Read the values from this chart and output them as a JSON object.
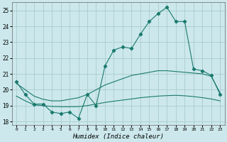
{
  "xlabel": "Humidex (Indice chaleur)",
  "bg_color": "#cce8ec",
  "grid_color": "#aacccc",
  "line_color": "#1a7a6e",
  "xlim": [
    -0.5,
    23.5
  ],
  "ylim": [
    17.8,
    25.5
  ],
  "yticks": [
    18,
    19,
    20,
    21,
    22,
    23,
    24,
    25
  ],
  "xticks": [
    0,
    1,
    2,
    3,
    4,
    5,
    6,
    7,
    8,
    9,
    10,
    11,
    12,
    13,
    14,
    15,
    16,
    17,
    18,
    19,
    20,
    21,
    22,
    23
  ],
  "curve_markers": {
    "x": [
      0,
      1,
      2,
      3,
      4,
      5,
      6,
      7,
      8,
      9,
      10,
      11,
      12,
      13,
      14,
      15,
      16,
      17,
      18,
      19,
      20,
      21,
      22,
      23
    ],
    "y": [
      20.5,
      19.7,
      19.1,
      19.1,
      18.6,
      18.5,
      18.6,
      18.2,
      19.7,
      19.0,
      21.5,
      22.5,
      22.7,
      22.6,
      23.5,
      24.3,
      24.8,
      25.2,
      24.3,
      24.3,
      21.3,
      21.2,
      20.9,
      19.7
    ]
  },
  "curve_upper_smooth": {
    "x": [
      0,
      1,
      2,
      3,
      4,
      5,
      6,
      7,
      8,
      9,
      10,
      11,
      12,
      13,
      14,
      15,
      16,
      17,
      18,
      19,
      20,
      21,
      22,
      23
    ],
    "y": [
      20.4,
      20.0,
      19.6,
      19.4,
      19.3,
      19.3,
      19.4,
      19.5,
      19.7,
      20.0,
      20.3,
      20.5,
      20.7,
      20.9,
      21.0,
      21.1,
      21.2,
      21.2,
      21.15,
      21.1,
      21.05,
      21.0,
      20.85,
      19.8
    ]
  },
  "curve_lower_smooth": {
    "x": [
      0,
      1,
      2,
      3,
      4,
      5,
      6,
      7,
      8,
      9,
      10,
      11,
      12,
      13,
      14,
      15,
      16,
      17,
      18,
      19,
      20,
      21,
      22,
      23
    ],
    "y": [
      19.6,
      19.3,
      19.05,
      19.0,
      18.95,
      18.93,
      18.93,
      18.94,
      19.0,
      19.1,
      19.2,
      19.28,
      19.35,
      19.42,
      19.5,
      19.55,
      19.6,
      19.63,
      19.65,
      19.62,
      19.57,
      19.5,
      19.42,
      19.3
    ]
  }
}
